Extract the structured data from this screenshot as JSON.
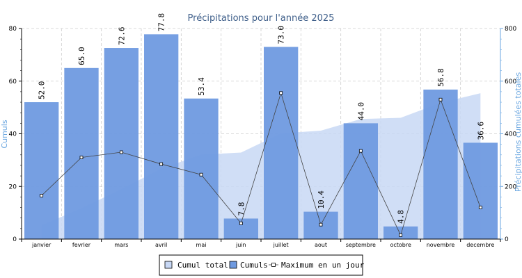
{
  "chart_data": {
    "type": "bar",
    "title": "Précipitations pour l'année 2025",
    "xlabel": "",
    "ylabel": "Cumuls",
    "y2label": "Précipitations cumulées totales",
    "ylim": [
      0,
      80
    ],
    "y2lim": [
      0,
      800
    ],
    "yticks": [
      "0",
      "20",
      "40",
      "60",
      "80"
    ],
    "y2ticks": [
      "0",
      "200",
      "400",
      "600",
      "800"
    ],
    "categories": [
      "janvier",
      "fevrier",
      "mars",
      "avril",
      "mai",
      "juin",
      "juillet",
      "aout",
      "septembre",
      "octobre",
      "novembre",
      "decembre"
    ],
    "grid": true,
    "legend_position": "bottom-center",
    "series": [
      {
        "name": "Cumul total",
        "type": "area",
        "axis": "right",
        "color": "#c8d8f5",
        "values": [
          52.0,
          117.0,
          189.6,
          267.4,
          320.8,
          328.6,
          401.6,
          412.0,
          456.0,
          460.8,
          517.6,
          554.2
        ]
      },
      {
        "name": "Cumuls",
        "type": "bar",
        "axis": "left",
        "color": "#6f9ae0",
        "values": [
          52.0,
          65.0,
          72.6,
          77.8,
          53.4,
          7.8,
          73.0,
          10.4,
          44.0,
          4.8,
          56.8,
          36.6
        ],
        "labels": [
          "52.0",
          "65.0",
          "72.6",
          "77.8",
          "53.4",
          "7.8",
          "73.0",
          "10.4",
          "44.0",
          "4.8",
          "56.8",
          "36.6"
        ]
      },
      {
        "name": "Maximum en un jour",
        "type": "line",
        "axis": "left",
        "color": "#444444",
        "values": [
          16.5,
          31.0,
          33.0,
          28.5,
          24.5,
          6.0,
          55.5,
          5.5,
          33.5,
          1.5,
          53.0,
          12.0
        ]
      }
    ]
  },
  "colors": {
    "title": "#3f5f8a",
    "axis_label": "#6aa6e0",
    "area": "#c8d8f5",
    "bar": "#6f9ae0",
    "line": "#444444",
    "grid": "#cccccc"
  }
}
